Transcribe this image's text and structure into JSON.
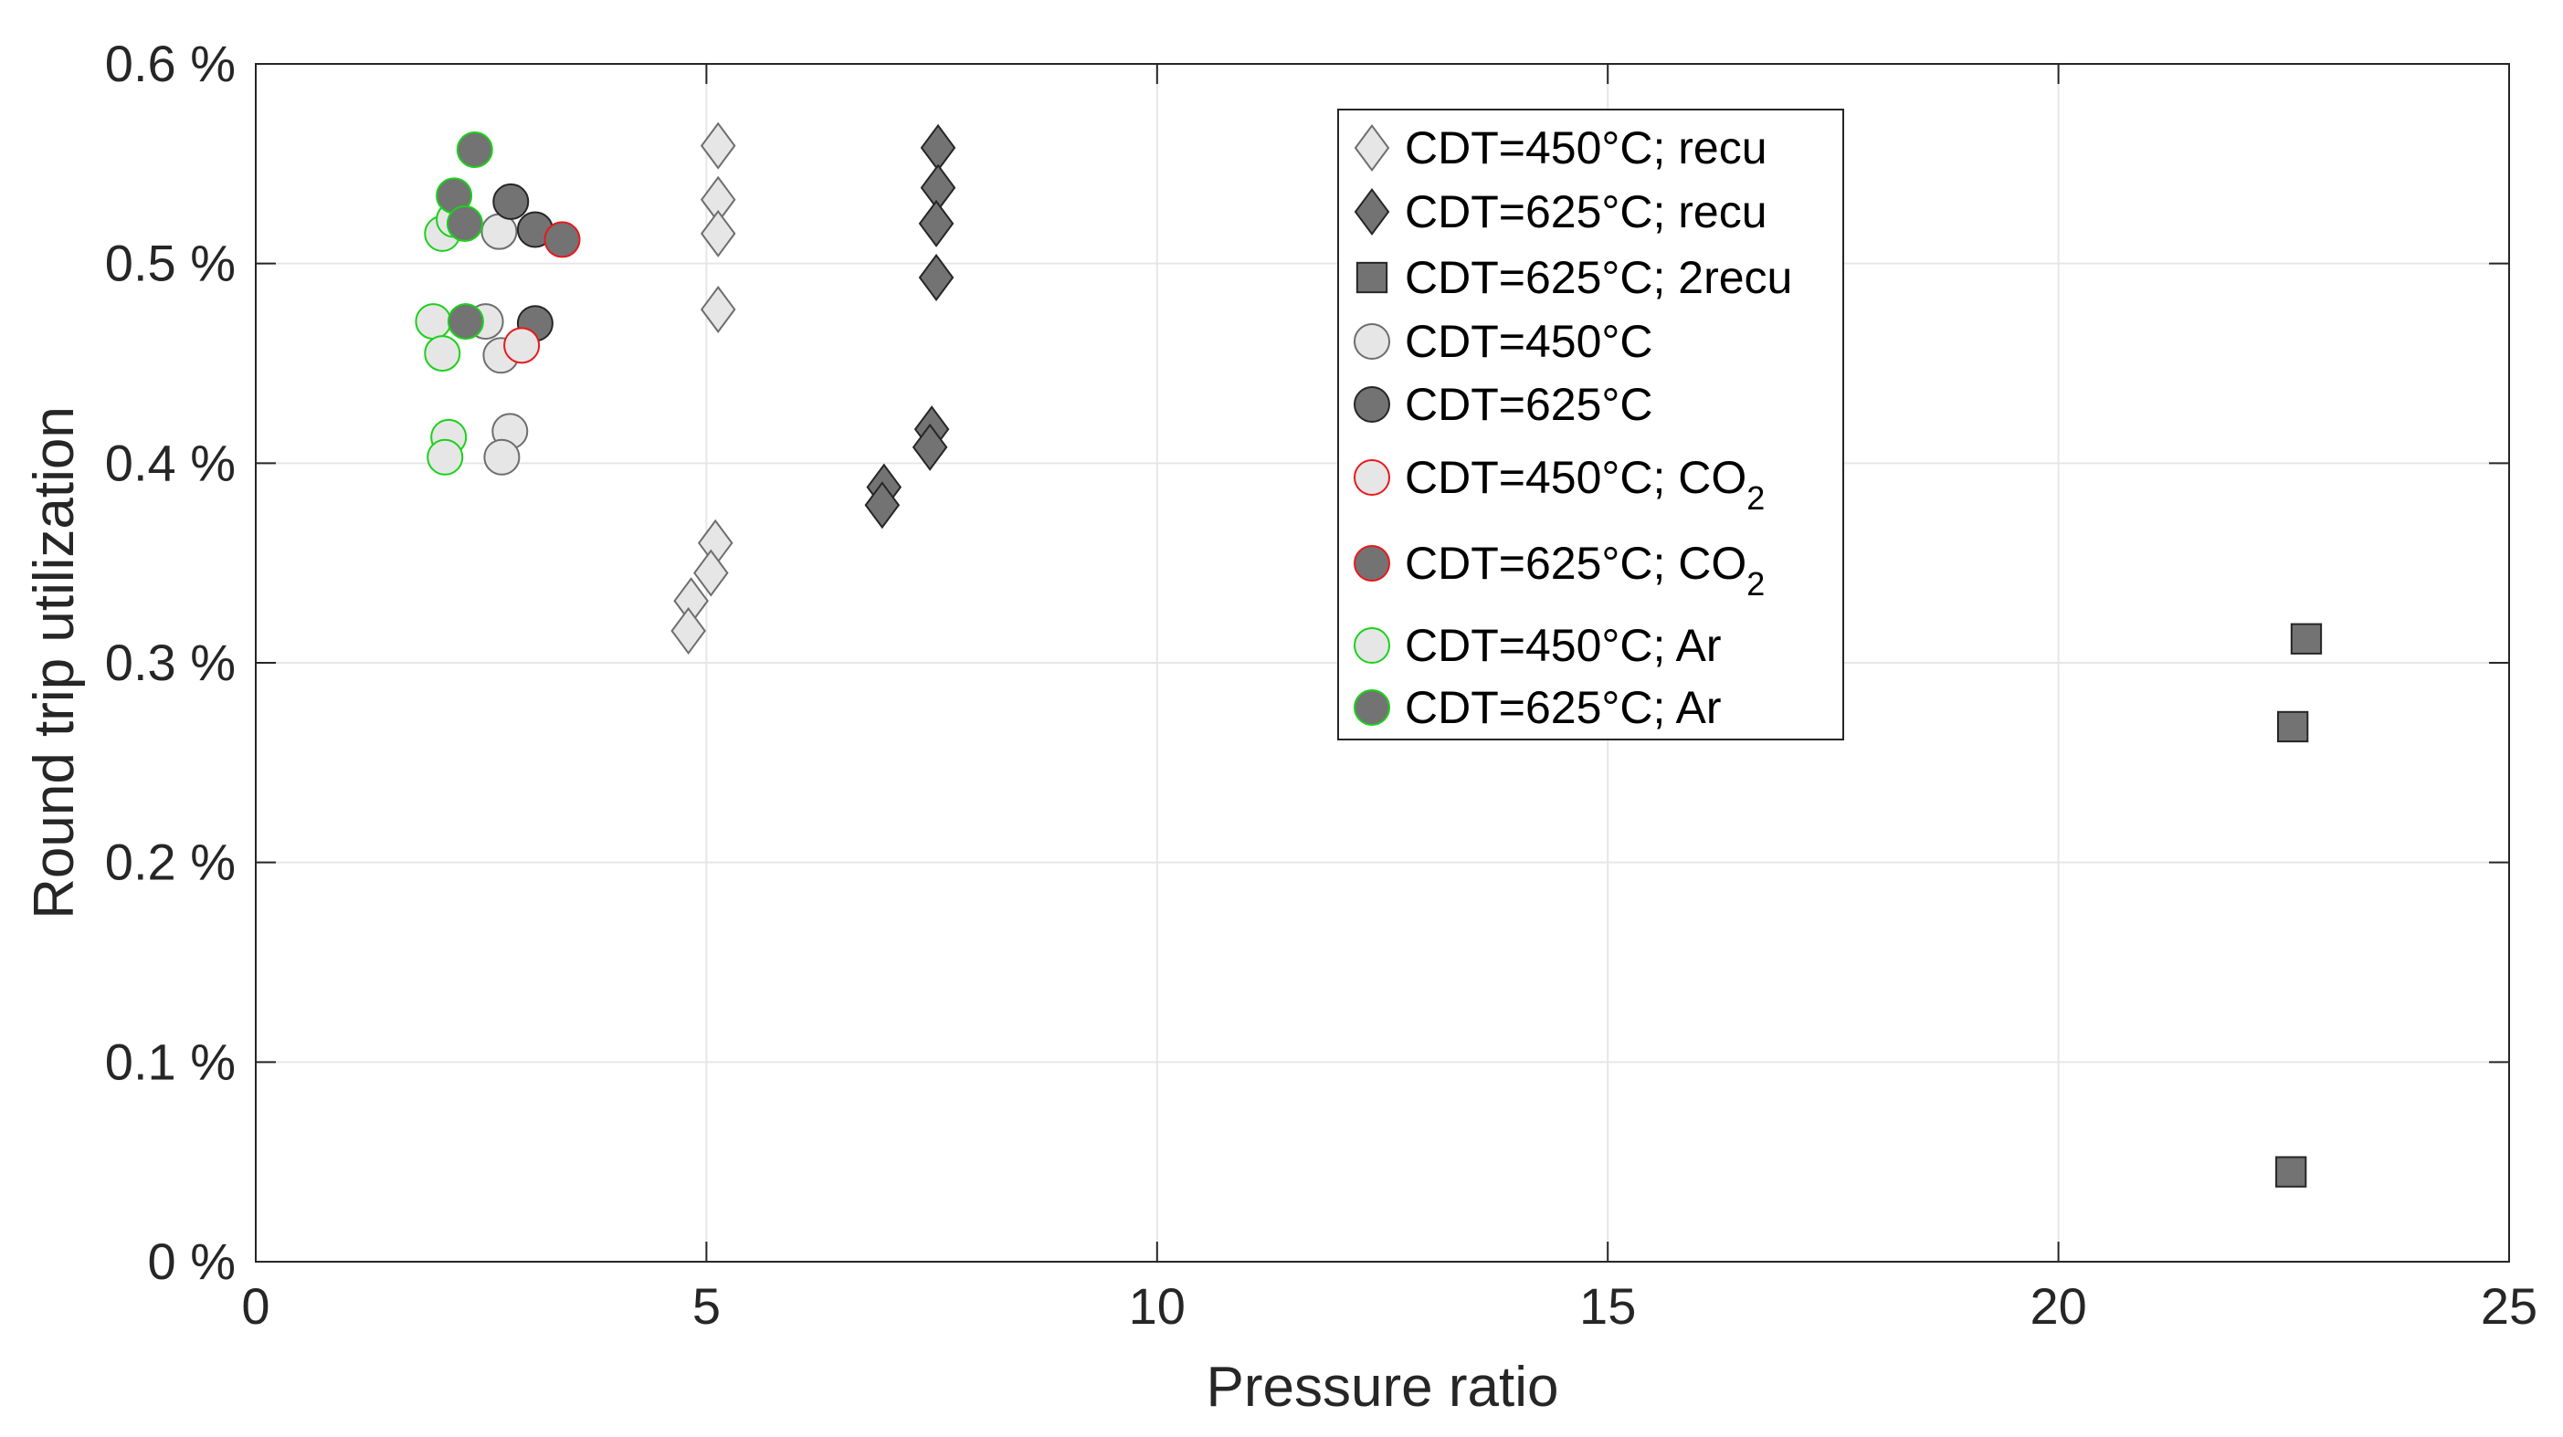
{
  "chart_data": {
    "type": "scatter",
    "title": "",
    "xlabel": "Pressure ratio",
    "ylabel": "Round trip utilization",
    "xlim": [
      0,
      25
    ],
    "ylim": [
      0,
      0.6
    ],
    "x_ticks": [
      0,
      5,
      10,
      15,
      20,
      25
    ],
    "x_tick_labels": [
      "0",
      "5",
      "10",
      "15",
      "20",
      "25"
    ],
    "y_ticks": [
      0,
      0.1,
      0.2,
      0.3,
      0.4,
      0.5,
      0.6
    ],
    "y_tick_labels": [
      "0 %",
      "0.1 %",
      "0.2 %",
      "0.3 %",
      "0.4 %",
      "0.5 %",
      "0.6 %"
    ],
    "grid": true,
    "legend_position": "top-center",
    "series": [
      {
        "name": "CDT=450°C; recu",
        "label_main": "CDT=450°C; recu",
        "label_sub": "",
        "marker": "diamond",
        "fill": "#e6e6e6",
        "edge": "#6e6e6e",
        "points": [
          [
            5.13,
            0.559
          ],
          [
            5.13,
            0.532
          ],
          [
            5.13,
            0.515
          ],
          [
            5.13,
            0.477
          ],
          [
            5.1,
            0.36
          ],
          [
            5.05,
            0.345
          ],
          [
            4.83,
            0.331
          ],
          [
            4.8,
            0.316
          ]
        ]
      },
      {
        "name": "CDT=625°C; recu",
        "label_main": "CDT=625°C; recu",
        "label_sub": "",
        "marker": "diamond",
        "fill": "#737373",
        "edge": "#262626",
        "points": [
          [
            7.57,
            0.558
          ],
          [
            7.57,
            0.538
          ],
          [
            7.55,
            0.52
          ],
          [
            7.55,
            0.493
          ],
          [
            7.5,
            0.417
          ],
          [
            7.48,
            0.408
          ],
          [
            6.97,
            0.388
          ],
          [
            6.95,
            0.379
          ]
        ]
      },
      {
        "name": "CDT=625°C; 2recu",
        "label_main": "CDT=625°C; 2recu",
        "label_sub": "",
        "marker": "square",
        "fill": "#737373",
        "edge": "#262626",
        "points": [
          [
            22.75,
            0.312
          ],
          [
            22.6,
            0.268
          ],
          [
            22.58,
            0.045
          ]
        ]
      },
      {
        "name": "CDT=450°C",
        "label_main": "CDT=450°C",
        "label_sub": "",
        "marker": "circle",
        "fill": "#e6e6e6",
        "edge": "#6e6e6e",
        "points": [
          [
            2.7,
            0.516
          ],
          [
            2.55,
            0.471
          ],
          [
            2.72,
            0.454
          ],
          [
            2.82,
            0.416
          ],
          [
            2.73,
            0.403
          ]
        ]
      },
      {
        "name": "CDT=625°C",
        "label_main": "CDT=625°C",
        "label_sub": "",
        "marker": "circle",
        "fill": "#737373",
        "edge": "#262626",
        "points": [
          [
            2.83,
            0.531
          ],
          [
            3.1,
            0.517
          ],
          [
            3.1,
            0.47
          ]
        ]
      },
      {
        "name": "CDT=450°C; CO2",
        "label_main": "CDT=450°C; CO",
        "label_sub": "2",
        "marker": "circle",
        "fill": "#e6e6e6",
        "edge": "#e8191b",
        "points": [
          [
            2.95,
            0.459
          ]
        ]
      },
      {
        "name": "CDT=625°C; CO2",
        "label_main": "CDT=625°C; CO",
        "label_sub": "2",
        "marker": "circle",
        "fill": "#737373",
        "edge": "#e8191b",
        "points": [
          [
            3.4,
            0.512
          ]
        ]
      },
      {
        "name": "CDT=450°C; Ar",
        "label_main": "CDT=450°C; Ar",
        "label_sub": "",
        "marker": "circle",
        "fill": "#e6e6e6",
        "edge": "#1bd11b",
        "points": [
          [
            2.07,
            0.515
          ],
          [
            2.2,
            0.522
          ],
          [
            1.97,
            0.471
          ],
          [
            2.07,
            0.455
          ],
          [
            2.14,
            0.413
          ],
          [
            2.1,
            0.403
          ]
        ]
      },
      {
        "name": "CDT=625°C; Ar",
        "label_main": "CDT=625°C; Ar",
        "label_sub": "",
        "marker": "circle",
        "fill": "#737373",
        "edge": "#1bd11b",
        "points": [
          [
            2.43,
            0.557
          ],
          [
            2.2,
            0.534
          ],
          [
            2.32,
            0.52
          ],
          [
            2.33,
            0.471
          ]
        ]
      }
    ]
  }
}
